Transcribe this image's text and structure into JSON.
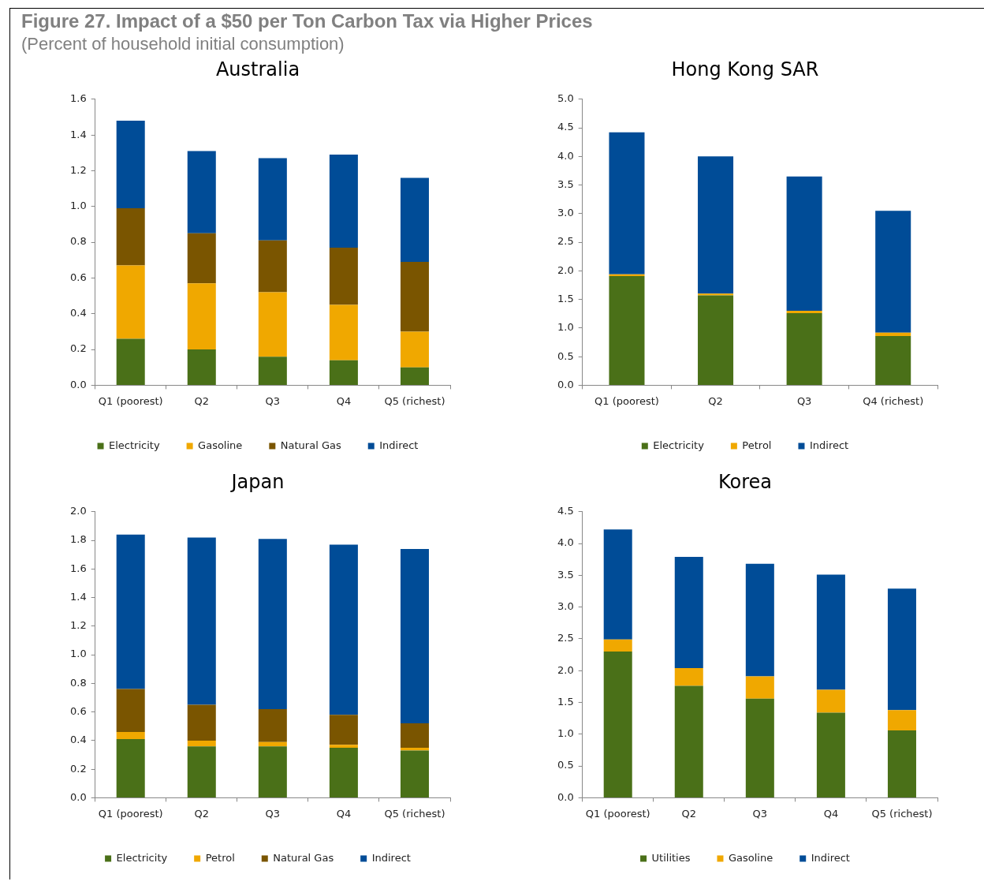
{
  "chart_data": [
    {
      "type": "other",
      "title": "Figure 27. Impact of a $50 per Ton Carbon Tax via Higher Prices",
      "subtitle": "(Percent of household initial consumption)"
    },
    {
      "type": "bar",
      "title": "Australia",
      "stacked": true,
      "legend": "bottom",
      "grid": false,
      "categories": [
        "Q1 (poorest)",
        "Q2",
        "Q3",
        "Q4",
        "Q5 (richest)"
      ],
      "ylim": [
        0,
        1.6
      ],
      "yticks": [
        {
          "value": 0,
          "label": "0.0"
        },
        {
          "value": 0.2,
          "label": "0.2"
        },
        {
          "value": 0.4,
          "label": "0.4"
        },
        {
          "value": 0.6,
          "label": "0.6"
        },
        {
          "value": 0.8,
          "label": "0.8"
        },
        {
          "value": 1,
          "label": "1.0"
        },
        {
          "value": 1.2,
          "label": "1.2"
        },
        {
          "value": 1.4,
          "label": "1.4"
        },
        {
          "value": 1.6,
          "label": "1.6"
        }
      ],
      "series": [
        {
          "name": "Electricity",
          "color": "#4a7018",
          "values": [
            0.26,
            0.2,
            0.16,
            0.14,
            0.1
          ]
        },
        {
          "name": "Gasoline",
          "color": "#f0a800",
          "values": [
            0.41,
            0.37,
            0.36,
            0.31,
            0.2
          ]
        },
        {
          "name": "Natural Gas",
          "color": "#7a5500",
          "values": [
            0.32,
            0.28,
            0.29,
            0.32,
            0.39
          ]
        },
        {
          "name": "Indirect",
          "color": "#004c97",
          "values": [
            0.49,
            0.46,
            0.46,
            0.52,
            0.47
          ]
        }
      ]
    },
    {
      "type": "bar",
      "title": "Hong Kong SAR",
      "stacked": true,
      "legend": "bottom",
      "grid": false,
      "categories": [
        "Q1 (poorest)",
        "Q2",
        "Q3",
        "Q4 (richest)"
      ],
      "ylim": [
        0,
        5
      ],
      "yticks": [
        {
          "value": 0,
          "label": "0.0"
        },
        {
          "value": 0.5,
          "label": "0.5"
        },
        {
          "value": 1,
          "label": "1.0"
        },
        {
          "value": 1.5,
          "label": "1.5"
        },
        {
          "value": 2,
          "label": "2.0"
        },
        {
          "value": 2.5,
          "label": "2.5"
        },
        {
          "value": 3,
          "label": "3.0"
        },
        {
          "value": 3.5,
          "label": "3.5"
        },
        {
          "value": 4,
          "label": "4.0"
        },
        {
          "value": 4.5,
          "label": "4.5"
        },
        {
          "value": 5,
          "label": "5.0"
        }
      ],
      "series": [
        {
          "name": "Electricity",
          "color": "#4a7018",
          "values": [
            1.91,
            1.57,
            1.26,
            0.86
          ]
        },
        {
          "name": "Petrol",
          "color": "#f0a800",
          "values": [
            0.03,
            0.03,
            0.04,
            0.06
          ]
        },
        {
          "name": "Indirect",
          "color": "#004c97",
          "values": [
            2.48,
            2.4,
            2.35,
            2.13
          ]
        }
      ]
    },
    {
      "type": "bar",
      "title": "Japan",
      "stacked": true,
      "legend": "bottom",
      "grid": false,
      "categories": [
        "Q1 (poorest)",
        "Q2",
        "Q3",
        "Q4",
        "Q5 (richest)"
      ],
      "ylim": [
        0,
        2
      ],
      "yticks": [
        {
          "value": 0,
          "label": "0.0"
        },
        {
          "value": 0.2,
          "label": "0.2"
        },
        {
          "value": 0.4,
          "label": "0.4"
        },
        {
          "value": 0.6,
          "label": "0.6"
        },
        {
          "value": 0.8,
          "label": "0.8"
        },
        {
          "value": 1,
          "label": "1.0"
        },
        {
          "value": 1.2,
          "label": "1.2"
        },
        {
          "value": 1.4,
          "label": "1.4"
        },
        {
          "value": 1.6,
          "label": "1.6"
        },
        {
          "value": 1.8,
          "label": "1.8"
        },
        {
          "value": 2,
          "label": "2.0"
        }
      ],
      "series": [
        {
          "name": "Electricity",
          "color": "#4a7018",
          "values": [
            0.41,
            0.36,
            0.36,
            0.35,
            0.33
          ]
        },
        {
          "name": "Petrol",
          "color": "#f0a800",
          "values": [
            0.05,
            0.04,
            0.03,
            0.02,
            0.02
          ]
        },
        {
          "name": "Natural Gas",
          "color": "#7a5500",
          "values": [
            0.3,
            0.25,
            0.23,
            0.21,
            0.17
          ]
        },
        {
          "name": "Indirect",
          "color": "#004c97",
          "values": [
            1.08,
            1.17,
            1.19,
            1.19,
            1.22
          ]
        }
      ]
    },
    {
      "type": "bar",
      "title": "Korea",
      "stacked": true,
      "legend": "bottom",
      "grid": false,
      "categories": [
        "Q1 (poorest)",
        "Q2",
        "Q3",
        "Q4",
        "Q5 (richest)"
      ],
      "ylim": [
        0,
        4.5
      ],
      "yticks": [
        {
          "value": 0,
          "label": "0.0"
        },
        {
          "value": 0.5,
          "label": "0.5"
        },
        {
          "value": 1,
          "label": "1.0"
        },
        {
          "value": 1.5,
          "label": "1.5"
        },
        {
          "value": 2,
          "label": "2.0"
        },
        {
          "value": 2.5,
          "label": "2.5"
        },
        {
          "value": 3,
          "label": "3.0"
        },
        {
          "value": 3.5,
          "label": "3.5"
        },
        {
          "value": 4,
          "label": "4.0"
        },
        {
          "value": 4.5,
          "label": "4.5"
        }
      ],
      "series": [
        {
          "name": "Utilities",
          "color": "#4a7018",
          "values": [
            2.3,
            1.76,
            1.56,
            1.34,
            1.06
          ]
        },
        {
          "name": "Gasoline",
          "color": "#f0a800",
          "values": [
            0.19,
            0.28,
            0.35,
            0.36,
            0.32
          ]
        },
        {
          "name": "Indirect",
          "color": "#004c97",
          "values": [
            1.73,
            1.75,
            1.77,
            1.81,
            1.91
          ]
        }
      ]
    }
  ]
}
